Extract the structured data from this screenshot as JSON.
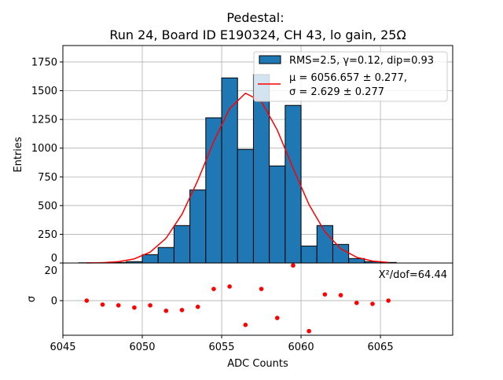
{
  "chart_data": [
    {
      "type": "bar",
      "title_line1": "Pedestal:",
      "title_line2": "Run 24, Board ID E190324, CH 43, lo gain, 25Ω",
      "ylabel": "Entries",
      "xlim": [
        6045,
        6069.55
      ],
      "ylim": [
        0,
        1893
      ],
      "yticks": [
        0,
        250,
        500,
        750,
        1000,
        1250,
        1500,
        1750
      ],
      "grid": true,
      "bin_edges_start": [
        6046,
        6047,
        6048,
        6049,
        6050,
        6051,
        6052,
        6053,
        6054,
        6055,
        6056,
        6057,
        6058,
        6059,
        6060,
        6061,
        6062,
        6063,
        6064,
        6065
      ],
      "bin_width": 1,
      "values": [
        2,
        3,
        5,
        12,
        73,
        135,
        326,
        636,
        1264,
        1611,
        989,
        1640,
        845,
        1372,
        148,
        326,
        162,
        39,
        12,
        5
      ],
      "bar_color": "#1f77b4",
      "fit": {
        "x": [
          6046.5,
          6047.5,
          6048.5,
          6049.5,
          6050.5,
          6051.5,
          6052.5,
          6053.5,
          6054.5,
          6055.5,
          6056.5,
          6057.5,
          6058.5,
          6059.5,
          6060.5,
          6061.5,
          6062.5,
          6063.5,
          6064.5,
          6065.5
        ],
        "y": [
          1,
          3,
          12,
          36,
          95,
          216,
          424,
          720,
          1057,
          1344,
          1478,
          1407,
          1158,
          825,
          509,
          272,
          125,
          50,
          17,
          5
        ],
        "color": "#ff0000"
      },
      "legend": {
        "placement": "top-right",
        "hist_label": "RMS=2.5, γ=0.12, dip=0.93",
        "fit_label_line1": "μ = 6056.657 ± 0.277,",
        "fit_label_line2": "σ = 2.629 ± 0.277"
      }
    },
    {
      "type": "scatter",
      "xlabel": "ADC Counts",
      "ylabel": "σ",
      "xlim": [
        6045,
        6069.55
      ],
      "ylim": [
        -18.4,
        20
      ],
      "xticks": [
        6045,
        6050,
        6055,
        6060,
        6065
      ],
      "yticks": [
        0,
        20
      ],
      "grid": true,
      "x": [
        6046.5,
        6047.5,
        6048.5,
        6049.5,
        6050.5,
        6051.5,
        6052.5,
        6053.5,
        6054.5,
        6055.5,
        6056.5,
        6057.5,
        6058.5,
        6059.5,
        6060.5,
        6061.5,
        6062.5,
        6063.5,
        6064.5,
        6065.5
      ],
      "y": [
        0,
        -2.1,
        -2.5,
        -3.7,
        -2.5,
        -5.4,
        -5.0,
        -3.3,
        6.2,
        7.5,
        -12.9,
        6.2,
        -9.2,
        18.7,
        -16.2,
        3.3,
        2.9,
        -1.2,
        -1.7,
        0
      ],
      "color": "#ff0000",
      "annotation": "X²/dof=64.44"
    }
  ]
}
